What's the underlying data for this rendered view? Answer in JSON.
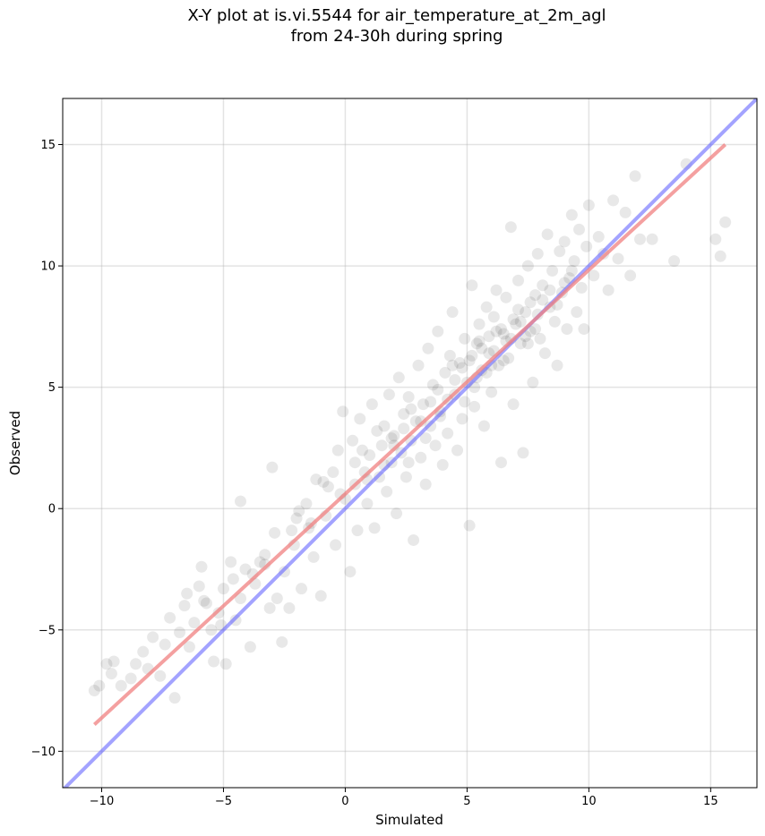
{
  "chart_data": {
    "type": "scatter",
    "title_line1": "X-Y plot at is.vi.5544 for air_temperature_at_2m_agl",
    "title_line2": "from 24-30h during spring",
    "xlabel": "Simulated",
    "ylabel": "Observed",
    "xlim": [
      -11.6,
      16.9
    ],
    "ylim": [
      -11.5,
      16.9
    ],
    "xticks": [
      -10,
      -5,
      0,
      5,
      10,
      15
    ],
    "yticks": [
      -10,
      -5,
      0,
      5,
      10,
      15
    ],
    "xtick_labels": [
      "−10",
      "−5",
      "0",
      "5",
      "10",
      "15"
    ],
    "ytick_labels": [
      "−10",
      "−5",
      "0",
      "5",
      "10",
      "15"
    ],
    "grid": true,
    "colors": {
      "points": "#000000",
      "fit_line": "#f08080",
      "identity_line": "#6666ff"
    },
    "series": [
      {
        "values_xy": [
          [
            -10.3,
            -7.5
          ],
          [
            -10.1,
            -7.3
          ],
          [
            -9.8,
            -6.4
          ],
          [
            -9.5,
            -6.3
          ],
          [
            -9.6,
            -6.8
          ],
          [
            -9.2,
            -7.3
          ],
          [
            -8.8,
            -7.0
          ],
          [
            -8.6,
            -6.4
          ],
          [
            -8.3,
            -5.9
          ],
          [
            -8.1,
            -6.6
          ],
          [
            -7.9,
            -5.3
          ],
          [
            -7.6,
            -6.9
          ],
          [
            -7.4,
            -5.6
          ],
          [
            -7.2,
            -4.5
          ],
          [
            -7.0,
            -7.8
          ],
          [
            -6.8,
            -5.1
          ],
          [
            -6.6,
            -4.0
          ],
          [
            -6.4,
            -5.7
          ],
          [
            -6.2,
            -4.7
          ],
          [
            -6.0,
            -3.2
          ],
          [
            -5.9,
            -2.4
          ],
          [
            -5.7,
            -3.9
          ],
          [
            -5.5,
            -5.0
          ],
          [
            -5.4,
            -6.3
          ],
          [
            -5.2,
            -4.3
          ],
          [
            -5.0,
            -3.3
          ],
          [
            -4.9,
            -6.4
          ],
          [
            -4.7,
            -2.2
          ],
          [
            -4.5,
            -4.6
          ],
          [
            -4.3,
            -3.7
          ],
          [
            -4.1,
            -2.5
          ],
          [
            -4.3,
            0.3
          ],
          [
            -3.9,
            -5.7
          ],
          [
            -3.7,
            -3.1
          ],
          [
            -3.5,
            -2.2
          ],
          [
            -3.3,
            -1.9
          ],
          [
            -3.1,
            -4.1
          ],
          [
            -3.0,
            1.7
          ],
          [
            -2.8,
            -3.7
          ],
          [
            -2.6,
            -5.5
          ],
          [
            -2.5,
            -2.6
          ],
          [
            -2.3,
            -4.1
          ],
          [
            -2.1,
            -1.5
          ],
          [
            -2.0,
            -0.4
          ],
          [
            -1.8,
            -3.3
          ],
          [
            -1.6,
            0.2
          ],
          [
            -1.5,
            -0.8
          ],
          [
            -1.3,
            -2.0
          ],
          [
            -1.2,
            1.2
          ],
          [
            -1.0,
            -3.6
          ],
          [
            -0.8,
            -0.3
          ],
          [
            -0.7,
            0.9
          ],
          [
            -0.5,
            1.5
          ],
          [
            -0.4,
            -1.5
          ],
          [
            -0.3,
            2.4
          ],
          [
            -0.1,
            4.0
          ],
          [
            0.0,
            0.4
          ],
          [
            0.2,
            -2.6
          ],
          [
            0.3,
            2.8
          ],
          [
            0.4,
            1.0
          ],
          [
            0.5,
            -0.9
          ],
          [
            0.6,
            3.7
          ],
          [
            0.8,
            1.5
          ],
          [
            0.9,
            0.2
          ],
          [
            1.0,
            2.2
          ],
          [
            1.1,
            4.3
          ],
          [
            1.2,
            -0.8
          ],
          [
            1.4,
            1.3
          ],
          [
            1.5,
            2.6
          ],
          [
            1.6,
            3.4
          ],
          [
            1.7,
            0.7
          ],
          [
            1.8,
            4.7
          ],
          [
            1.9,
            1.9
          ],
          [
            2.0,
            3.0
          ],
          [
            2.1,
            -0.2
          ],
          [
            2.2,
            5.4
          ],
          [
            2.3,
            2.3
          ],
          [
            2.4,
            3.9
          ],
          [
            2.5,
            1.3
          ],
          [
            2.6,
            4.6
          ],
          [
            2.7,
            2.8
          ],
          [
            2.8,
            -1.3
          ],
          [
            2.9,
            3.6
          ],
          [
            3.0,
            5.9
          ],
          [
            3.1,
            2.1
          ],
          [
            3.2,
            4.3
          ],
          [
            3.3,
            1.0
          ],
          [
            3.4,
            6.6
          ],
          [
            3.5,
            3.4
          ],
          [
            3.6,
            5.1
          ],
          [
            3.7,
            2.6
          ],
          [
            3.8,
            7.3
          ],
          [
            3.9,
            4.0
          ],
          [
            4.0,
            1.8
          ],
          [
            4.1,
            5.6
          ],
          [
            4.2,
            3.1
          ],
          [
            4.3,
            6.3
          ],
          [
            4.4,
            8.1
          ],
          [
            4.5,
            4.7
          ],
          [
            4.6,
            2.4
          ],
          [
            4.7,
            6.0
          ],
          [
            4.8,
            3.7
          ],
          [
            4.9,
            7.0
          ],
          [
            5.0,
            5.2
          ],
          [
            5.1,
            -0.7
          ],
          [
            5.2,
            9.2
          ],
          [
            5.3,
            4.2
          ],
          [
            5.4,
            6.8
          ],
          [
            5.5,
            7.6
          ],
          [
            5.6,
            5.7
          ],
          [
            5.7,
            3.4
          ],
          [
            5.8,
            8.3
          ],
          [
            5.9,
            6.4
          ],
          [
            6.0,
            4.8
          ],
          [
            6.1,
            7.9
          ],
          [
            6.2,
            9.0
          ],
          [
            6.3,
            5.9
          ],
          [
            6.4,
            1.9
          ],
          [
            6.5,
            7.2
          ],
          [
            6.6,
            8.7
          ],
          [
            6.7,
            6.2
          ],
          [
            6.8,
            11.6
          ],
          [
            6.9,
            4.3
          ],
          [
            7.0,
            7.6
          ],
          [
            7.1,
            9.4
          ],
          [
            7.2,
            6.8
          ],
          [
            7.3,
            2.3
          ],
          [
            7.4,
            8.1
          ],
          [
            7.5,
            10.0
          ],
          [
            7.6,
            7.3
          ],
          [
            7.7,
            5.2
          ],
          [
            7.8,
            8.8
          ],
          [
            7.9,
            10.5
          ],
          [
            8.0,
            7.0
          ],
          [
            8.1,
            9.2
          ],
          [
            8.2,
            6.4
          ],
          [
            8.3,
            11.3
          ],
          [
            8.4,
            8.3
          ],
          [
            8.5,
            9.8
          ],
          [
            8.6,
            7.7
          ],
          [
            8.7,
            5.9
          ],
          [
            8.8,
            10.6
          ],
          [
            8.9,
            8.9
          ],
          [
            9.0,
            11.0
          ],
          [
            9.1,
            7.4
          ],
          [
            9.2,
            9.5
          ],
          [
            9.3,
            12.1
          ],
          [
            9.4,
            10.2
          ],
          [
            9.5,
            8.1
          ],
          [
            9.6,
            11.5
          ],
          [
            9.7,
            9.1
          ],
          [
            9.8,
            7.4
          ],
          [
            9.9,
            10.8
          ],
          [
            10.0,
            12.5
          ],
          [
            10.2,
            9.6
          ],
          [
            10.4,
            11.2
          ],
          [
            10.6,
            10.5
          ],
          [
            10.8,
            9.0
          ],
          [
            11.0,
            12.7
          ],
          [
            11.2,
            10.3
          ],
          [
            11.5,
            12.2
          ],
          [
            11.7,
            9.6
          ],
          [
            11.9,
            13.7
          ],
          [
            12.1,
            11.1
          ],
          [
            12.6,
            11.1
          ],
          [
            13.5,
            10.2
          ],
          [
            14.0,
            14.2
          ],
          [
            15.2,
            11.1
          ],
          [
            15.4,
            10.4
          ],
          [
            15.6,
            11.8
          ],
          [
            -6.5,
            -3.5
          ],
          [
            -5.8,
            -3.8
          ],
          [
            -5.1,
            -4.8
          ],
          [
            -4.6,
            -2.9
          ],
          [
            -3.8,
            -2.7
          ],
          [
            -2.9,
            -1.0
          ],
          [
            -2.2,
            -0.9
          ],
          [
            -1.4,
            -0.6
          ],
          [
            -0.9,
            1.1
          ],
          [
            -0.2,
            0.6
          ],
          [
            0.4,
            1.9
          ],
          [
            0.7,
            2.4
          ],
          [
            1.3,
            3.2
          ],
          [
            1.6,
            1.8
          ],
          [
            2.0,
            2.6
          ],
          [
            2.4,
            3.3
          ],
          [
            2.7,
            4.1
          ],
          [
            3.1,
            3.6
          ],
          [
            3.5,
            4.4
          ],
          [
            3.8,
            4.9
          ],
          [
            4.2,
            4.5
          ],
          [
            4.5,
            5.3
          ],
          [
            4.8,
            5.8
          ],
          [
            5.1,
            6.1
          ],
          [
            5.4,
            5.4
          ],
          [
            5.6,
            6.6
          ],
          [
            5.9,
            7.1
          ],
          [
            6.1,
            6.5
          ],
          [
            6.4,
            7.4
          ],
          [
            6.6,
            6.9
          ],
          [
            6.9,
            7.8
          ],
          [
            7.1,
            8.2
          ],
          [
            7.4,
            7.1
          ],
          [
            7.6,
            8.5
          ],
          [
            7.9,
            8.0
          ],
          [
            8.1,
            8.6
          ],
          [
            8.4,
            9.0
          ],
          [
            8.7,
            8.4
          ],
          [
            9.0,
            9.3
          ],
          [
            9.3,
            9.8
          ],
          [
            5.2,
            6.3
          ],
          [
            5.5,
            6.9
          ],
          [
            5.8,
            5.6
          ],
          [
            6.2,
            7.3
          ],
          [
            6.5,
            6.1
          ],
          [
            6.8,
            7.0
          ],
          [
            7.2,
            7.7
          ],
          [
            7.5,
            6.8
          ],
          [
            7.8,
            7.4
          ],
          [
            6.0,
            5.9
          ],
          [
            -3.3,
            -2.3
          ],
          [
            -1.9,
            -0.1
          ],
          [
            0.9,
            1.2
          ],
          [
            1.9,
            2.9
          ],
          [
            2.6,
            1.9
          ],
          [
            3.3,
            2.9
          ],
          [
            3.9,
            3.8
          ],
          [
            4.4,
            5.9
          ],
          [
            4.9,
            4.4
          ],
          [
            5.3,
            5.0
          ]
        ]
      }
    ],
    "fit_line": {
      "x": [
        -10.3,
        15.6
      ],
      "y": [
        -8.9,
        15.0
      ]
    },
    "identity_line": {
      "x": [
        -11.6,
        16.9
      ],
      "y": [
        -11.6,
        16.9
      ]
    }
  }
}
